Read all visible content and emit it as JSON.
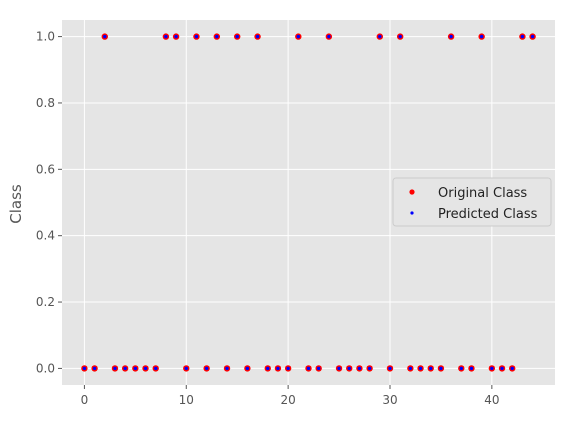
{
  "chart_data": {
    "type": "scatter",
    "title": "",
    "xlabel": "",
    "ylabel": "Class",
    "xlim": [
      -2.2,
      46.2
    ],
    "ylim": [
      -0.05,
      1.05
    ],
    "xticks": [
      0,
      10,
      20,
      30,
      40
    ],
    "yticks": [
      0.0,
      0.2,
      0.4,
      0.6,
      0.8,
      1.0
    ],
    "xtick_labels": [
      "0",
      "10",
      "20",
      "30",
      "40"
    ],
    "ytick_labels": [
      "0.0",
      "0.2",
      "0.4",
      "0.6",
      "0.8",
      "1.0"
    ],
    "grid": true,
    "legend_position": "center-right",
    "x": [
      0,
      1,
      2,
      3,
      4,
      5,
      6,
      7,
      8,
      9,
      10,
      11,
      12,
      13,
      14,
      15,
      16,
      17,
      18,
      19,
      20,
      21,
      22,
      23,
      24,
      25,
      26,
      27,
      28,
      29,
      30,
      31,
      32,
      33,
      34,
      35,
      36,
      37,
      38,
      39,
      40,
      41,
      42,
      43,
      44
    ],
    "series": [
      {
        "name": "Original Class",
        "color": "#ff0000",
        "values": [
          0,
          0,
          1,
          0,
          0,
          0,
          0,
          0,
          1,
          1,
          0,
          1,
          0,
          1,
          0,
          1,
          0,
          1,
          0,
          0,
          0,
          1,
          0,
          0,
          1,
          0,
          0,
          0,
          0,
          1,
          0,
          1,
          0,
          0,
          0,
          0,
          1,
          0,
          0,
          1,
          0,
          0,
          0,
          1,
          1
        ]
      },
      {
        "name": "Predicted Class",
        "color": "#0000ff",
        "values": [
          0,
          0,
          1,
          0,
          0,
          0,
          0,
          0,
          1,
          1,
          0,
          1,
          0,
          1,
          0,
          1,
          0,
          1,
          0,
          0,
          0,
          1,
          0,
          0,
          1,
          0,
          0,
          0,
          0,
          1,
          0,
          1,
          0,
          0,
          0,
          0,
          1,
          0,
          0,
          1,
          0,
          0,
          0,
          1,
          1
        ]
      }
    ],
    "colors": {
      "plot_background": "#e5e5e5",
      "grid": "#ffffff"
    }
  }
}
